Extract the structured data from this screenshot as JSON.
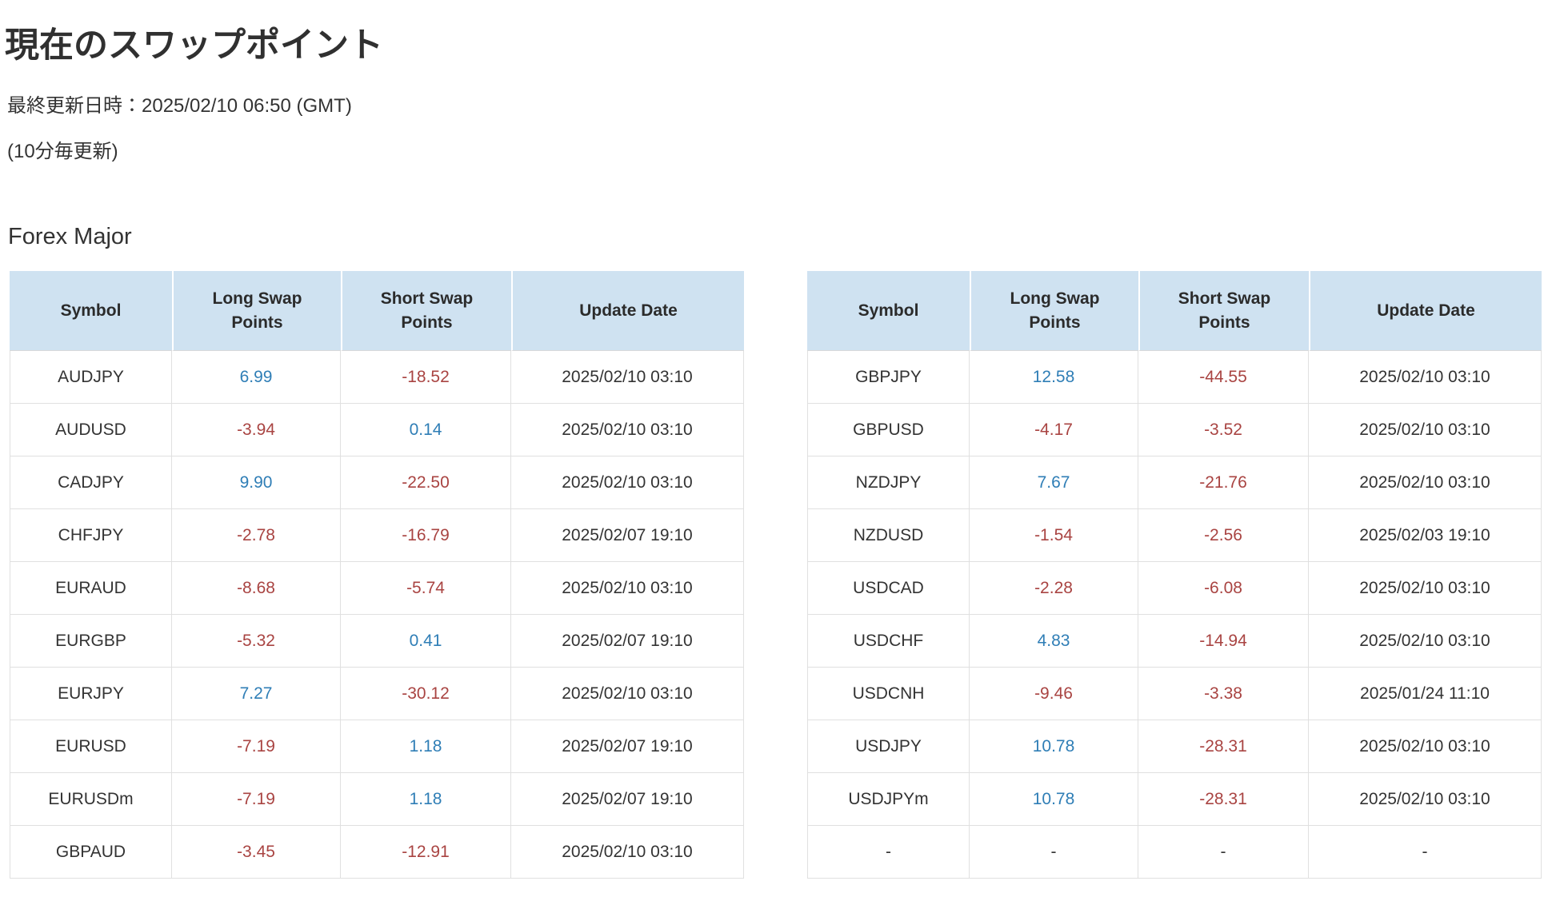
{
  "page": {
    "title": "現在のスワップポイント",
    "last_update": "最終更新日時：2025/02/10 06:50 (GMT)",
    "update_interval": "(10分毎更新)"
  },
  "section": {
    "title": "Forex Major"
  },
  "table_columns": [
    "Symbol",
    "Long Swap Points",
    "Short Swap Points",
    "Update Date"
  ],
  "tables": [
    {
      "id": "forex-major-left",
      "rows": [
        [
          "AUDJPY",
          "6.99",
          "-18.52",
          "2025/02/10 03:10"
        ],
        [
          "AUDUSD",
          "-3.94",
          "0.14",
          "2025/02/10 03:10"
        ],
        [
          "CADJPY",
          "9.90",
          "-22.50",
          "2025/02/10 03:10"
        ],
        [
          "CHFJPY",
          "-2.78",
          "-16.79",
          "2025/02/07 19:10"
        ],
        [
          "EURAUD",
          "-8.68",
          "-5.74",
          "2025/02/10 03:10"
        ],
        [
          "EURGBP",
          "-5.32",
          "0.41",
          "2025/02/07 19:10"
        ],
        [
          "EURJPY",
          "7.27",
          "-30.12",
          "2025/02/10 03:10"
        ],
        [
          "EURUSD",
          "-7.19",
          "1.18",
          "2025/02/07 19:10"
        ],
        [
          "EURUSDm",
          "-7.19",
          "1.18",
          "2025/02/07 19:10"
        ],
        [
          "GBPAUD",
          "-3.45",
          "-12.91",
          "2025/02/10 03:10"
        ]
      ]
    },
    {
      "id": "forex-major-right",
      "rows": [
        [
          "GBPJPY",
          "12.58",
          "-44.55",
          "2025/02/10 03:10"
        ],
        [
          "GBPUSD",
          "-4.17",
          "-3.52",
          "2025/02/10 03:10"
        ],
        [
          "NZDJPY",
          "7.67",
          "-21.76",
          "2025/02/10 03:10"
        ],
        [
          "NZDUSD",
          "-1.54",
          "-2.56",
          "2025/02/03 19:10"
        ],
        [
          "USDCAD",
          "-2.28",
          "-6.08",
          "2025/02/10 03:10"
        ],
        [
          "USDCHF",
          "4.83",
          "-14.94",
          "2025/02/10 03:10"
        ],
        [
          "USDCNH",
          "-9.46",
          "-3.38",
          "2025/01/24 11:10"
        ],
        [
          "USDJPY",
          "10.78",
          "-28.31",
          "2025/02/10 03:10"
        ],
        [
          "USDJPYm",
          "10.78",
          "-28.31",
          "2025/02/10 03:10"
        ],
        [
          "-",
          "-",
          "-",
          "-"
        ]
      ]
    }
  ],
  "colors": {
    "header_bg": "#cfe2f1",
    "positive_value": "#2f7eb6",
    "negative_value": "#a94442",
    "text": "#333333"
  }
}
